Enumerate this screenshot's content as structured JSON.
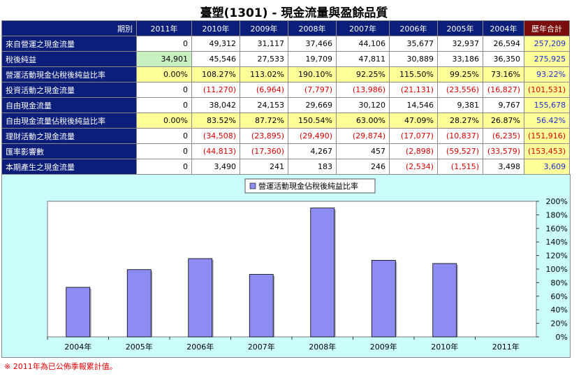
{
  "page": {
    "title": "臺塑(1301) -  現金流量與盈餘品質",
    "footnote": "※ 2011年為已公佈季報累計值。"
  },
  "table": {
    "header_label": "期別",
    "columns": [
      "2011年",
      "2010年",
      "2009年",
      "2008年",
      "2007年",
      "2006年",
      "2005年",
      "2004年"
    ],
    "total_label": "歷年合計",
    "rows": [
      {
        "label": "來自營運之現金流量",
        "values": [
          "0",
          "49,312",
          "31,117",
          "37,466",
          "44,106",
          "35,677",
          "32,937",
          "26,594"
        ],
        "total": "257,209"
      },
      {
        "label": "稅後純益",
        "values": [
          "34,901",
          "45,546",
          "27,533",
          "19,709",
          "47,811",
          "30,889",
          "33,186",
          "36,350"
        ],
        "total": "275,925"
      },
      {
        "label": "營運活動現金佔稅後純益比率",
        "values": [
          "0.00%",
          "108.27%",
          "113.02%",
          "190.10%",
          "92.25%",
          "115.50%",
          "99.25%",
          "73.16%"
        ],
        "total": "93.22%"
      },
      {
        "label": "投資活動之現金流量",
        "values": [
          "0",
          "(11,270)",
          "(6,964)",
          "(7,797)",
          "(13,986)",
          "(21,131)",
          "(23,556)",
          "(16,827)"
        ],
        "total": "(101,531)"
      },
      {
        "label": "自由現金流量",
        "values": [
          "0",
          "38,042",
          "24,153",
          "29,669",
          "30,120",
          "14,546",
          "9,381",
          "9,767"
        ],
        "total": "155,678"
      },
      {
        "label": "自由現金流量佔稅後純益比率",
        "values": [
          "0.00%",
          "83.52%",
          "87.72%",
          "150.54%",
          "63.00%",
          "47.09%",
          "28.27%",
          "26.87%"
        ],
        "total": "56.42%"
      },
      {
        "label": "理財活動之現金流量",
        "values": [
          "0",
          "(34,508)",
          "(23,895)",
          "(29,490)",
          "(29,874)",
          "(17,077)",
          "(10,837)",
          "(6,235)"
        ],
        "total": "(151,916)"
      },
      {
        "label": "匯率影響數",
        "values": [
          "0",
          "(44,813)",
          "(17,360)",
          "4,267",
          "457",
          "(2,898)",
          "(59,527)",
          "(33,579)"
        ],
        "total": "(153,453)"
      },
      {
        "label": "本期產生之現金流量",
        "values": [
          "0",
          "3,490",
          "241",
          "183",
          "246",
          "(2,534)",
          "(1,515)",
          "3,498"
        ],
        "total": "3,609"
      }
    ]
  },
  "colors": {
    "header_bg": "#0b1e7a",
    "total_header_bg": "#7b0c0c",
    "ratio_row_bg": "#ffff99",
    "negative_text": "#e00000",
    "total_text": "#1d2fd0",
    "chart_bg": "#ccfdfd",
    "bar_fill": "#8c8cf2"
  },
  "chart_data": {
    "type": "bar",
    "categories": [
      "2004年",
      "2005年",
      "2006年",
      "2007年",
      "2008年",
      "2009年",
      "2010年",
      "2011年"
    ],
    "series": [
      {
        "name": "營運活動現金佔稅後純益比率",
        "values": [
          73.16,
          99.25,
          115.5,
          92.25,
          190.1,
          113.02,
          108.27,
          0
        ]
      }
    ],
    "ylim": [
      0,
      200
    ],
    "yticks": [
      "0%",
      "20%",
      "40%",
      "60%",
      "80%",
      "100%",
      "120%",
      "140%",
      "160%",
      "180%",
      "200%"
    ],
    "y_axis_side": "right",
    "legend_position": "top-center",
    "grid": false
  }
}
